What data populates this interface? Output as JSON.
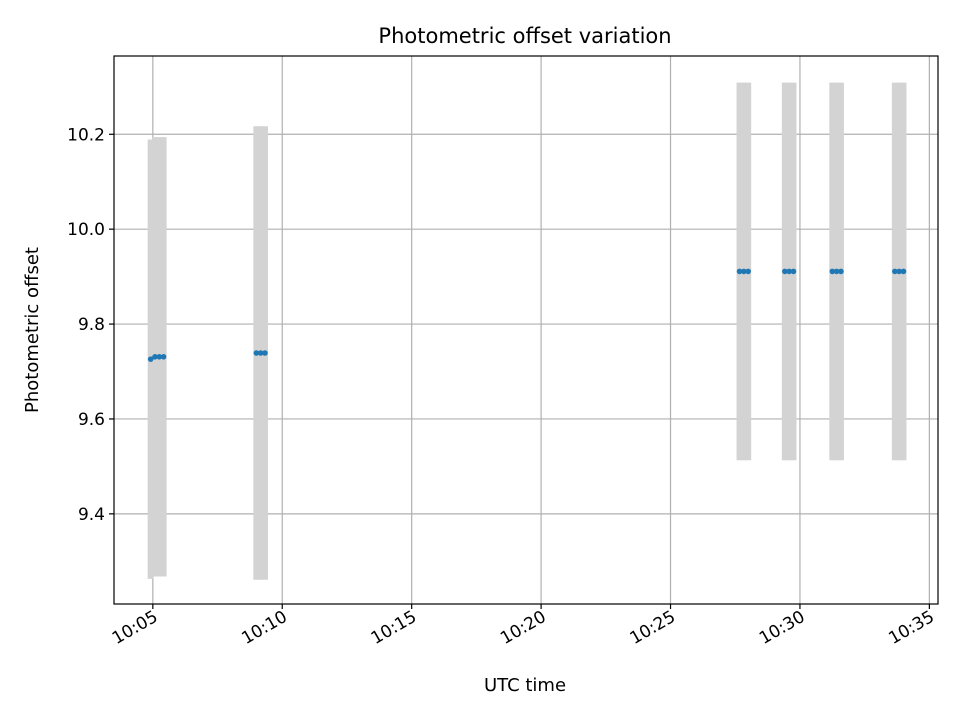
{
  "chart_data": {
    "type": "scatter",
    "title": "Photometric offset variation",
    "xlabel": "UTC time",
    "ylabel": "Photometric offset",
    "grid": true,
    "xlim": [
      "10:03:30",
      "10:35:20"
    ],
    "ylim": [
      9.21,
      10.365
    ],
    "x_ticks": [
      "10:05",
      "10:10",
      "10:15",
      "10:20",
      "10:25",
      "10:30",
      "10:35"
    ],
    "y_ticks": [
      9.4,
      9.6,
      9.8,
      10.0,
      10.2
    ],
    "y_tick_labels": [
      "9.4",
      "9.6",
      "9.8",
      "10.0",
      "10.2"
    ],
    "colors": {
      "points": "#1f77b4",
      "error_bars": "#d3d3d3",
      "grid": "#b0b0b0",
      "axes": "#000000"
    },
    "series": [
      {
        "points": [
          {
            "x": "10:04:55",
            "y": 9.726,
            "yerr": 0.463
          },
          {
            "x": "10:05:05",
            "y": 9.731,
            "yerr": 0.463
          },
          {
            "x": "10:05:15",
            "y": 9.731,
            "yerr": 0.463
          },
          {
            "x": "10:05:25",
            "y": 9.731,
            "yerr": 0.463
          },
          {
            "x": "10:09:00",
            "y": 9.739,
            "yerr": 0.478
          },
          {
            "x": "10:09:10",
            "y": 9.739,
            "yerr": 0.478
          },
          {
            "x": "10:09:20",
            "y": 9.739,
            "yerr": 0.478
          },
          {
            "x": "10:27:40",
            "y": 9.911,
            "yerr": 0.398
          },
          {
            "x": "10:27:50",
            "y": 9.911,
            "yerr": 0.398
          },
          {
            "x": "10:28:00",
            "y": 9.911,
            "yerr": 0.398
          },
          {
            "x": "10:29:25",
            "y": 9.911,
            "yerr": 0.398
          },
          {
            "x": "10:29:35",
            "y": 9.911,
            "yerr": 0.398
          },
          {
            "x": "10:29:45",
            "y": 9.911,
            "yerr": 0.398
          },
          {
            "x": "10:31:15",
            "y": 9.911,
            "yerr": 0.398
          },
          {
            "x": "10:31:25",
            "y": 9.911,
            "yerr": 0.398
          },
          {
            "x": "10:31:35",
            "y": 9.911,
            "yerr": 0.398
          },
          {
            "x": "10:33:40",
            "y": 9.911,
            "yerr": 0.398
          },
          {
            "x": "10:33:50",
            "y": 9.911,
            "yerr": 0.398
          },
          {
            "x": "10:34:00",
            "y": 9.911,
            "yerr": 0.398
          }
        ]
      }
    ]
  }
}
